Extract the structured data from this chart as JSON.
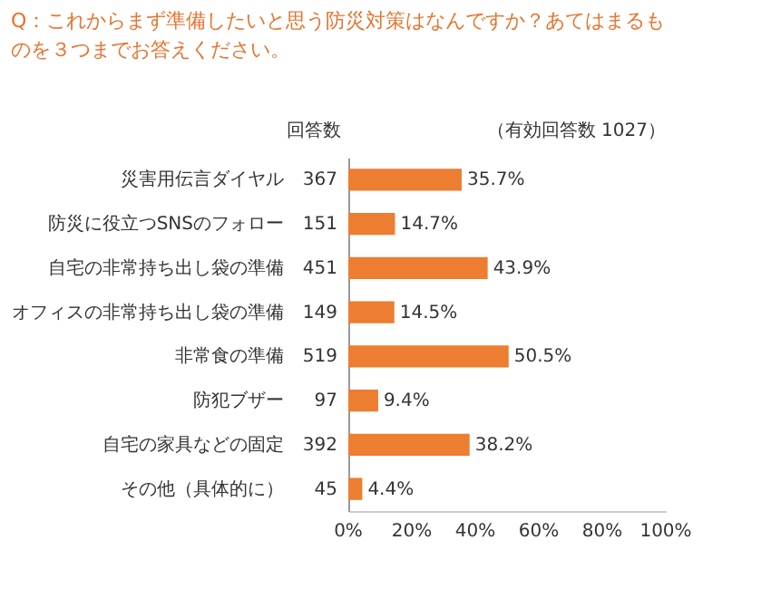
{
  "chart_data": {
    "type": "bar",
    "orientation": "horizontal",
    "title": "Q：これからまず準備したいと思う防災対策はなんですか？あてはまるものを３つまでお答えください。",
    "categories": [
      "災害用伝言ダイヤル",
      "防災に役立つSNSのフォロー",
      "自宅の非常持ち出し袋の準備",
      "オフィスの非常持ち出し袋の準備",
      "非常食の準備",
      "防犯ブザー",
      "自宅の家具などの固定",
      "その他（具体的に）"
    ],
    "values": [
      35.7,
      14.7,
      43.9,
      14.5,
      50.5,
      9.4,
      38.2,
      4.4
    ],
    "value_labels": [
      "35.7%",
      "14.7%",
      "43.9%",
      "14.5%",
      "50.5%",
      "9.4%",
      "38.2%",
      "4.4%"
    ],
    "color": "#ed7d31",
    "xlim": [
      0,
      100
    ],
    "xticks": [
      {
        "value": 0,
        "label": "0%"
      },
      {
        "value": 20,
        "label": "20%"
      },
      {
        "value": 40,
        "label": "40%"
      },
      {
        "value": 60,
        "label": "60%"
      },
      {
        "value": 80,
        "label": "80%"
      },
      {
        "value": 100,
        "label": "100%"
      }
    ],
    "grid": false,
    "annotations": [
      "回答数",
      "（有効回答数 1027）",
      "367",
      "151",
      "451",
      "149",
      "519",
      "97",
      "392",
      "45"
    ]
  }
}
